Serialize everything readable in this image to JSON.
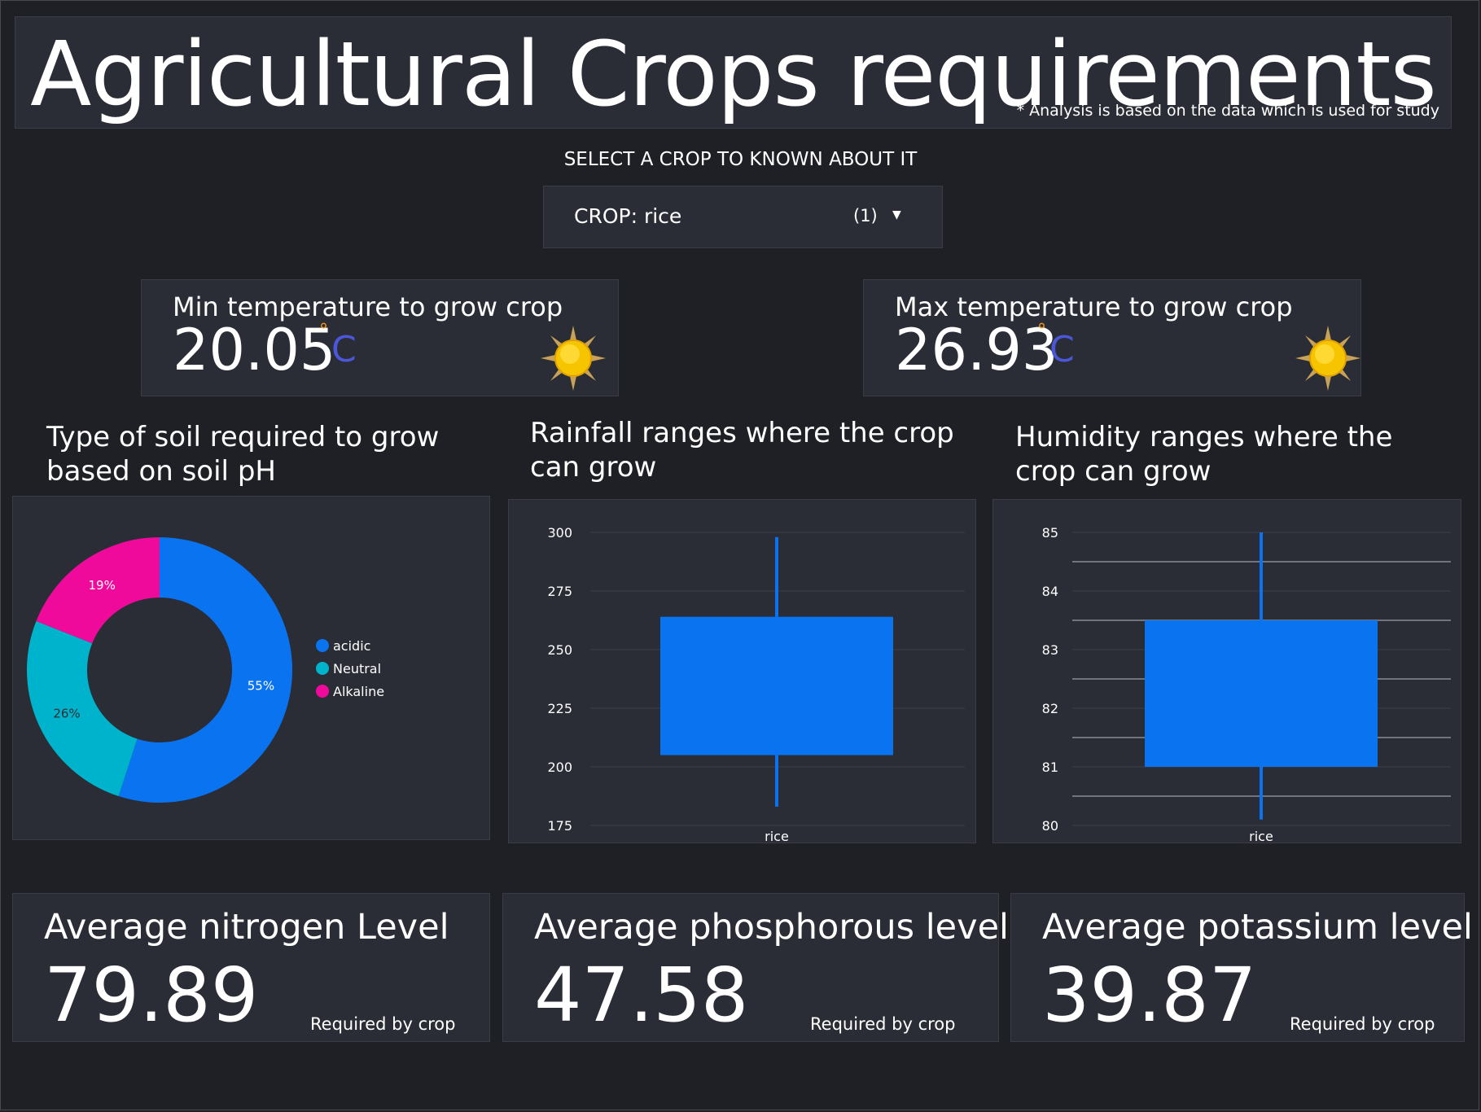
{
  "header": {
    "title": "Agricultural Crops requirements",
    "note": "* Analysis is based on the data which is used for study"
  },
  "selector": {
    "label": "SELECT A CROP TO KNOWN ABOUT IT",
    "field_label": "CROP: rice",
    "count": "(1)",
    "caret_icon": "caret-down-icon"
  },
  "min_temp": {
    "title": "Min temperature to grow crop",
    "value": "20.05",
    "degree": "°",
    "unit": "C",
    "icon": "sun-icon"
  },
  "max_temp": {
    "title": "Max temperature to grow crop",
    "value": "26.93",
    "degree": "°",
    "unit": "C",
    "icon": "sun-icon"
  },
  "soil": {
    "title_line1": "Type of soil required to grow",
    "title_line2": "based on soil pH"
  },
  "rainfall": {
    "title_line1": "Rainfall ranges where the crop",
    "title_line2": "can grow"
  },
  "humidity": {
    "title_line1": "Humidity ranges  where the",
    "title_line2": "crop can grow"
  },
  "nitrogen": {
    "title": "Average nitrogen Level",
    "value": "79.89",
    "note": "Required by crop"
  },
  "phosphorous": {
    "title": "Average phosphorous level",
    "value": "47.58",
    "note": "Required by crop"
  },
  "potassium": {
    "title": "Average potassium level",
    "value": "39.87",
    "note": "Required by crop"
  },
  "colors": {
    "background": "#1f2025",
    "panel": "#2b2d36",
    "acidic": "#0a73f0",
    "neutral": "#00b3cc",
    "alkaline": "#ef0a9b",
    "box": "#0a73f0"
  },
  "chart_data": [
    {
      "type": "pie",
      "variant": "donut",
      "categories": [
        "acidic",
        "Neutral",
        "Alkaline"
      ],
      "values": [
        55,
        26,
        19
      ],
      "labels": [
        "55%",
        "26%",
        "19%"
      ],
      "legend": "right"
    },
    {
      "type": "box",
      "categories": [
        "rice"
      ],
      "ylim": [
        175,
        300
      ],
      "yticks": [
        175,
        200,
        225,
        250,
        275,
        300
      ],
      "box": {
        "whisker_low": 183,
        "q1": 205,
        "q3": 264,
        "whisker_high": 298
      }
    },
    {
      "type": "box",
      "categories": [
        "rice"
      ],
      "ylim": [
        80,
        85
      ],
      "yticks": [
        80,
        81,
        82,
        83,
        84,
        85
      ],
      "box": {
        "whisker_low": 80.1,
        "q1": 81,
        "q3": 83.5,
        "whisker_high": 85
      }
    }
  ]
}
